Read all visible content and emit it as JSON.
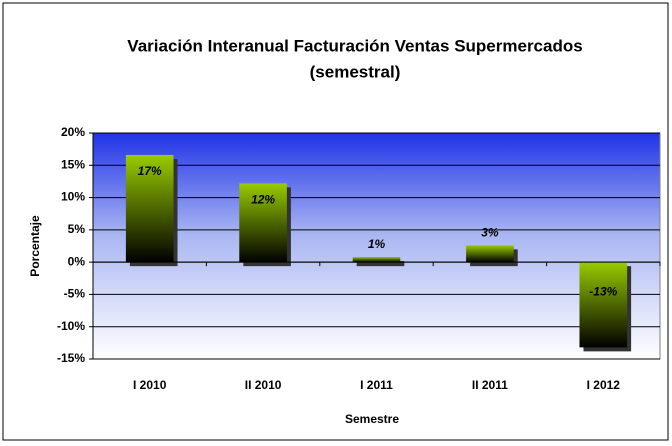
{
  "chart_data": {
    "type": "bar",
    "title": "Variación Interanual Facturación Ventas Supermercados",
    "subtitle": "(semestral)",
    "x_label": "Semestre",
    "y_label": "Porcentaje",
    "categories": [
      "I 2010",
      "II 2010",
      "I 2011",
      "II 2011",
      "I 2012"
    ],
    "values": [
      16.6,
      12.2,
      0.8,
      2.6,
      -13.2
    ],
    "value_labels": [
      "17%",
      "12%",
      "1%",
      "3%",
      "-13%"
    ],
    "color": "#99cc00",
    "ylim": [
      -15,
      20
    ],
    "yticks": [
      {
        "value": -15,
        "label": "-15%"
      },
      {
        "value": -10,
        "label": "-10%"
      },
      {
        "value": -5,
        "label": "-5%"
      },
      {
        "value": 0,
        "label": "0%"
      },
      {
        "value": 5,
        "label": "5%"
      },
      {
        "value": 10,
        "label": "10%"
      },
      {
        "value": 15,
        "label": "15%"
      },
      {
        "value": 20,
        "label": "20%"
      }
    ],
    "grid": true
  }
}
